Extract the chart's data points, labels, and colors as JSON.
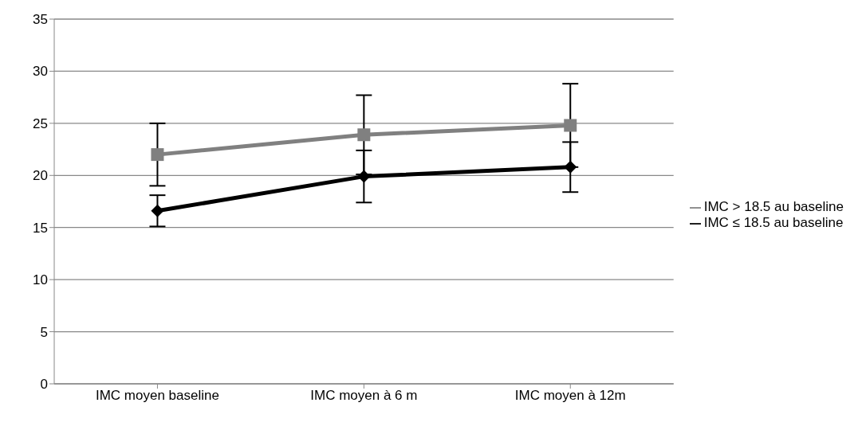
{
  "chart_data": {
    "type": "line",
    "categories": [
      "IMC moyen baseline",
      "IMC moyen à 6 m",
      "IMC moyen à 12m"
    ],
    "series": [
      {
        "name": "IMC ≤ 18.5 au baseline",
        "color": "#000000",
        "marker": "diamond",
        "values": [
          16.6,
          19.9,
          20.8
        ],
        "errors": [
          1.5,
          2.5,
          2.4
        ]
      },
      {
        "name": "IMC > 18.5 au baseline",
        "color": "#808080",
        "marker": "square",
        "values": [
          22.0,
          23.9,
          24.8
        ],
        "errors": [
          3.0,
          3.8,
          4.0
        ]
      }
    ],
    "ylim": [
      0,
      35
    ],
    "yticks": [
      0,
      5,
      10,
      15,
      20,
      25,
      30,
      35
    ],
    "grid": "y",
    "legend": "right"
  }
}
